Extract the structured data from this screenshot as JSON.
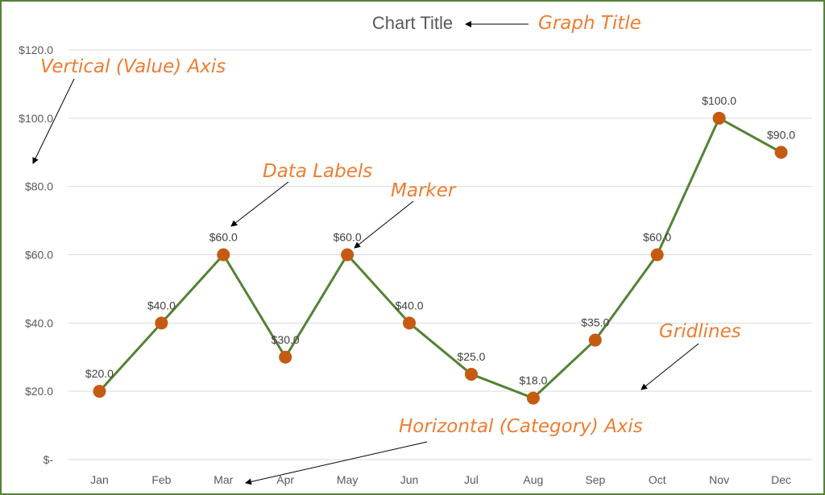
{
  "chart_data": {
    "type": "line",
    "title": "Chart Title",
    "categories": [
      "Jan",
      "Feb",
      "Mar",
      "Apr",
      "May",
      "Jun",
      "Jul",
      "Aug",
      "Sep",
      "Oct",
      "Nov",
      "Dec"
    ],
    "values": [
      20,
      40,
      60,
      30,
      60,
      40,
      25,
      18,
      35,
      60,
      100,
      90
    ],
    "data_labels": [
      "$20.0",
      "$40.0",
      "$60.0",
      "$30.0",
      "$60.0",
      "$40.0",
      "$25.0",
      "$18.0",
      "$35.0",
      "$60.0",
      "$100.0",
      "$90.0"
    ],
    "ylim": [
      0,
      120
    ],
    "yticks": [
      0,
      20,
      40,
      60,
      80,
      100,
      120
    ],
    "ytick_labels": [
      "$-",
      "$20.0",
      "$40.0",
      "$60.0",
      "$80.0",
      "$100.0",
      "$120.0"
    ],
    "grid": true,
    "line_color": "#548235",
    "marker_color": "#C55A11",
    "annotations": [
      "Graph Title",
      "Vertical (Value) Axis",
      "Data Labels",
      "Marker",
      "Gridlines",
      "Horizontal (Category) Axis"
    ]
  }
}
